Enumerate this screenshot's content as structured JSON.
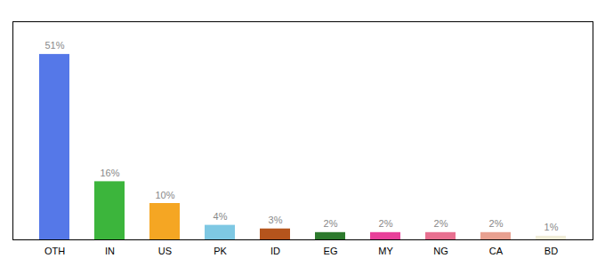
{
  "chart_data": {
    "type": "bar",
    "categories": [
      "OTH",
      "IN",
      "US",
      "PK",
      "ID",
      "EG",
      "MY",
      "NG",
      "CA",
      "BD"
    ],
    "values": [
      51,
      16,
      10,
      4,
      3,
      2,
      2,
      2,
      2,
      1
    ],
    "value_labels": [
      "51%",
      "16%",
      "10%",
      "4%",
      "3%",
      "2%",
      "2%",
      "2%",
      "2%",
      "1%"
    ],
    "colors": [
      "#5578e8",
      "#3cb53c",
      "#f5a623",
      "#7ec8e3",
      "#b5541c",
      "#2d7a2d",
      "#e8409a",
      "#e87090",
      "#e8a090",
      "#f0edd8"
    ],
    "ylim": [
      0,
      60
    ],
    "data_labels": true,
    "tick_labels": "x",
    "grid": false
  }
}
